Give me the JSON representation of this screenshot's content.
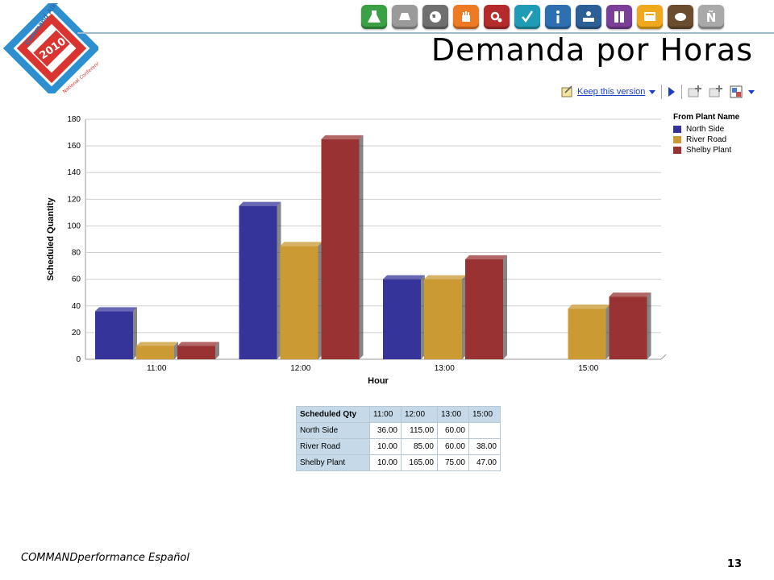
{
  "logo": {
    "line1": "Command Alkon",
    "year": "2010",
    "line2": "National Conference"
  },
  "page": {
    "title": "Demanda por Horas",
    "footer": "COMMANDperformance Español",
    "number": "13"
  },
  "toolbar": {
    "keep_version_label": "Keep this version"
  },
  "colors": {
    "north_side": "#35349a",
    "river_road": "#cc9a32",
    "shelby_plant": "#993333",
    "header_fill": "#c5d9e8"
  },
  "icons": [
    {
      "name": "flask-icon",
      "bg": "#3aa146"
    },
    {
      "name": "truck-icon",
      "bg": "#9a9a9a"
    },
    {
      "name": "globe-icon",
      "bg": "#6f6f6f"
    },
    {
      "name": "hand-icon",
      "bg": "#ef7a24"
    },
    {
      "name": "gears-icon",
      "bg": "#b52b2b"
    },
    {
      "name": "check-icon",
      "bg": "#1f9bb5"
    },
    {
      "name": "info-icon",
      "bg": "#2d6fb0"
    },
    {
      "name": "person-desk-icon",
      "bg": "#2c5f96"
    },
    {
      "name": "panel-icon",
      "bg": "#7a3f98"
    },
    {
      "name": "screen-icon",
      "bg": "#f0a81c"
    },
    {
      "name": "cement-truck-icon",
      "bg": "#6b4c2f"
    },
    {
      "name": "enye-icon",
      "bg": "#a9a9a9"
    }
  ],
  "chart_data": {
    "type": "bar",
    "title": "",
    "xlabel": "Hour",
    "ylabel": "Scheduled Quantity",
    "categories": [
      "11:00",
      "12:00",
      "13:00",
      "15:00"
    ],
    "ylim": [
      0,
      180
    ],
    "yticks": [
      0,
      20,
      40,
      60,
      80,
      100,
      120,
      140,
      160,
      180
    ],
    "grid": true,
    "legend_title": "From Plant Name",
    "legend_position": "top-right",
    "series": [
      {
        "name": "North Side",
        "color": "#35349a",
        "values": [
          36,
          115,
          60,
          null
        ]
      },
      {
        "name": "River Road",
        "color": "#cc9a32",
        "values": [
          10,
          85,
          60,
          38
        ]
      },
      {
        "name": "Shelby Plant",
        "color": "#993333",
        "values": [
          10,
          165,
          75,
          47
        ]
      }
    ]
  },
  "table": {
    "corner": "Scheduled Qty",
    "columns": [
      "11:00",
      "12:00",
      "13:00",
      "15:00"
    ],
    "rows": [
      {
        "label": "North Side",
        "cells": [
          "36.00",
          "115.00",
          "60.00",
          ""
        ]
      },
      {
        "label": "River Road",
        "cells": [
          "10.00",
          "85.00",
          "60.00",
          "38.00"
        ]
      },
      {
        "label": "Shelby Plant",
        "cells": [
          "10.00",
          "165.00",
          "75.00",
          "47.00"
        ]
      }
    ]
  }
}
